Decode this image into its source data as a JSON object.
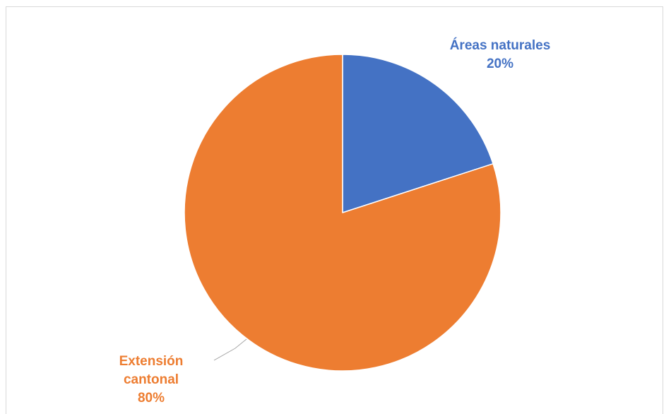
{
  "chart_data": {
    "type": "pie",
    "title": "",
    "slices": [
      {
        "label_lines": [
          "Áreas naturales",
          "20%"
        ],
        "value": 20,
        "color": "#4472c4"
      },
      {
        "label_lines": [
          "Extensión",
          "cantonal",
          "80%"
        ],
        "value": 80,
        "color": "#ed7d31"
      }
    ],
    "start_angle_deg": 0,
    "direction": "clockwise",
    "legend": "none",
    "leader_line_color": "#a6a6a6"
  }
}
